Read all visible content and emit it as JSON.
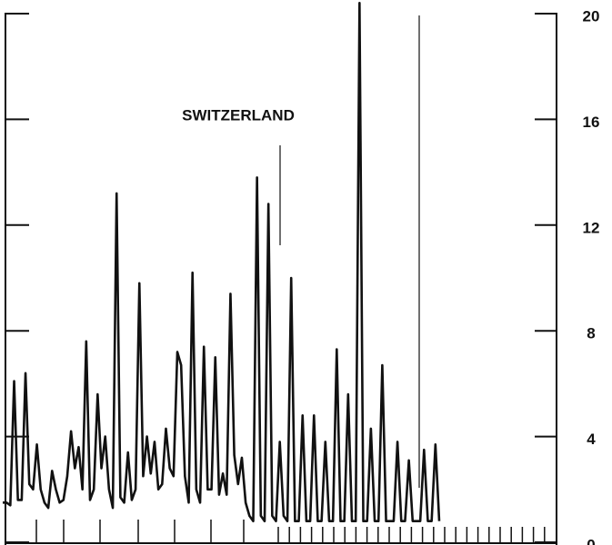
{
  "chart_data": {
    "type": "line",
    "title": "SWITZERLAND",
    "color": "#111111",
    "ylim": [
      0,
      20
    ],
    "yticks": [
      0,
      4,
      8,
      12,
      16,
      20
    ],
    "values": [
      1.5,
      1.5,
      1.4,
      6.1,
      1.6,
      1.6,
      6.4,
      2.2,
      2.0,
      3.7,
      2.0,
      1.5,
      1.3,
      2.7,
      2.0,
      1.5,
      1.6,
      2.5,
      4.2,
      2.8,
      3.6,
      2.0,
      7.6,
      1.6,
      2.0,
      5.6,
      2.8,
      4.0,
      2.0,
      1.3,
      13.2,
      1.7,
      1.5,
      3.4,
      1.6,
      2.0,
      9.8,
      2.5,
      4.0,
      2.6,
      3.8,
      2.0,
      2.2,
      4.3,
      2.8,
      2.5,
      7.2,
      6.7,
      2.5,
      1.5,
      10.2,
      2.0,
      1.5,
      7.4,
      2.0,
      2.0,
      7.0,
      1.8,
      2.6,
      1.8,
      9.4,
      3.3,
      2.2,
      3.2,
      1.5,
      1.0,
      0.8,
      13.8,
      1.0,
      0.8,
      12.8,
      1.0,
      0.8,
      3.8,
      1.0,
      0.8,
      10.0,
      0.8,
      0.8,
      4.8,
      0.8,
      0.8,
      4.8,
      0.8,
      0.8,
      3.8,
      0.8,
      0.8,
      7.3,
      0.8,
      0.8,
      5.6,
      0.8,
      0.8,
      20.4,
      0.8,
      0.8,
      4.3,
      0.8,
      0.8,
      6.7,
      0.8,
      0.8,
      0.8,
      3.8,
      0.8,
      0.8,
      3.1,
      0.8,
      0.8,
      0.8,
      3.5,
      0.8,
      0.8,
      3.7,
      0.8
    ]
  }
}
